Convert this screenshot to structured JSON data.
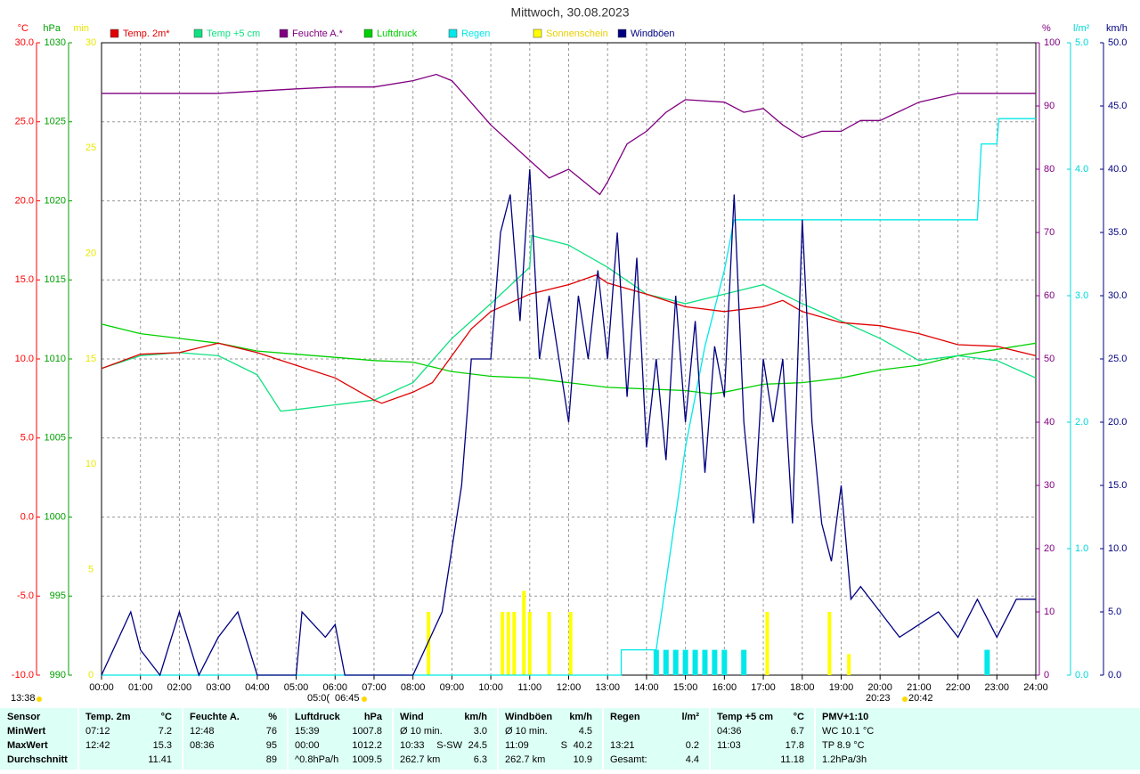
{
  "chart_data": {
    "type": "line",
    "title": "Mittwoch, 30.08.2023",
    "xlim": [
      0,
      24
    ],
    "xticks": [
      {
        "value": 0,
        "label": "00:00"
      },
      {
        "value": 1,
        "label": "01:00"
      },
      {
        "value": 2,
        "label": "02:00"
      },
      {
        "value": 3,
        "label": "03:00"
      },
      {
        "value": 4,
        "label": "04:00"
      },
      {
        "value": 5,
        "label": "05:00"
      },
      {
        "value": 6,
        "label": "06:00"
      },
      {
        "value": 7,
        "label": "07:00"
      },
      {
        "value": 8,
        "label": "08:00"
      },
      {
        "value": 9,
        "label": "09:00"
      },
      {
        "value": 10,
        "label": "10:00"
      },
      {
        "value": 11,
        "label": "11:00"
      },
      {
        "value": 12,
        "label": "12:00"
      },
      {
        "value": 13,
        "label": "13:00"
      },
      {
        "value": 14,
        "label": "14:00"
      },
      {
        "value": 15,
        "label": "15:00"
      },
      {
        "value": 16,
        "label": "16:00"
      },
      {
        "value": 17,
        "label": "17:00"
      },
      {
        "value": 18,
        "label": "18:00"
      },
      {
        "value": 19,
        "label": "19:00"
      },
      {
        "value": 20,
        "label": "20:00"
      },
      {
        "value": 21,
        "label": "21:00"
      },
      {
        "value": 22,
        "label": "22:00"
      },
      {
        "value": 23,
        "label": "23:00"
      },
      {
        "value": 24,
        "label": "24:00"
      }
    ],
    "grid": true,
    "y_axes": [
      {
        "label": "°C",
        "color": "#ff0000",
        "side": "left",
        "lim": [
          -10,
          30
        ],
        "ticks": [
          {
            "value": -10,
            "label": "-10.0"
          },
          {
            "value": -5,
            "label": "-5.0"
          },
          {
            "value": 0,
            "label": "0.0"
          },
          {
            "value": 5,
            "label": "5.0"
          },
          {
            "value": 10,
            "label": "10.0"
          },
          {
            "value": 15,
            "label": "15.0"
          },
          {
            "value": 20,
            "label": "20.0"
          },
          {
            "value": 25,
            "label": "25.0"
          },
          {
            "value": 30,
            "label": "30.0"
          }
        ]
      },
      {
        "label": "hPa",
        "color": "#00a000",
        "side": "left",
        "lim": [
          990,
          1030
        ],
        "ticks": [
          990,
          995,
          1000,
          1005,
          1010,
          1015,
          1020,
          1025,
          1030
        ]
      },
      {
        "label": "min",
        "color": "#e8e800",
        "side": "left",
        "lim": [
          0,
          30
        ],
        "ticks": [
          0,
          5,
          10,
          15,
          20,
          25,
          30
        ]
      },
      {
        "label": "%",
        "color": "#800080",
        "side": "right",
        "lim": [
          0,
          100
        ],
        "ticks": [
          0,
          10,
          20,
          30,
          40,
          50,
          60,
          70,
          80,
          90,
          100
        ]
      },
      {
        "label": "l/m²",
        "color": "#00d8d8",
        "side": "right",
        "lim": [
          0,
          5
        ],
        "ticks": [
          {
            "value": 0,
            "label": "0.0"
          },
          {
            "value": 1,
            "label": "1.0"
          },
          {
            "value": 2,
            "label": "2.0"
          },
          {
            "value": 3,
            "label": "3.0"
          },
          {
            "value": 4,
            "label": "4.0"
          },
          {
            "value": 5,
            "label": "5.0"
          }
        ]
      },
      {
        "label": "km/h",
        "color": "#000080",
        "side": "right",
        "lim": [
          0,
          50
        ],
        "ticks": [
          {
            "value": 0,
            "label": "0.0"
          },
          {
            "value": 5,
            "label": "5.0"
          },
          {
            "value": 10,
            "label": "10.0"
          },
          {
            "value": 15,
            "label": "15.0"
          },
          {
            "value": 20,
            "label": "20.0"
          },
          {
            "value": 25,
            "label": "25.0"
          },
          {
            "value": 30,
            "label": "30.0"
          },
          {
            "value": 35,
            "label": "35.0"
          },
          {
            "value": 40,
            "label": "40.0"
          },
          {
            "value": 45,
            "label": "45.0"
          },
          {
            "value": 50,
            "label": "50.0"
          }
        ]
      }
    ],
    "series": [
      {
        "name": "Temp. 2m*",
        "color": "#e00000",
        "axis": 0,
        "kind": "line",
        "x": [
          0,
          1,
          2,
          3,
          4,
          5,
          6,
          7,
          7.2,
          8,
          8.5,
          9,
          9.5,
          10,
          11,
          12,
          12.7,
          13,
          14,
          15,
          16,
          17,
          17.5,
          18,
          19,
          20,
          21,
          22,
          23,
          24
        ],
        "values": [
          9.4,
          10.3,
          10.4,
          11.0,
          10.4,
          9.6,
          8.8,
          7.4,
          7.2,
          7.9,
          8.5,
          10.2,
          11.9,
          13.0,
          14.1,
          14.7,
          15.3,
          14.8,
          14.1,
          13.3,
          13.0,
          13.3,
          13.7,
          13.0,
          12.3,
          12.1,
          11.6,
          10.9,
          10.8,
          10.2
        ]
      },
      {
        "name": "Temp +5 cm",
        "color": "#10e080",
        "axis": 0,
        "kind": "line",
        "x": [
          0,
          1,
          2,
          3,
          4,
          4.6,
          5,
          6,
          7,
          8,
          9,
          10,
          11,
          11.05,
          12,
          13,
          14,
          15,
          16,
          17,
          18,
          19,
          20,
          21,
          22,
          23,
          24
        ],
        "values": [
          9.4,
          10.2,
          10.4,
          10.2,
          9.0,
          6.7,
          6.8,
          7.1,
          7.4,
          8.5,
          11.3,
          13.5,
          15.8,
          17.8,
          17.2,
          15.8,
          14.1,
          13.5,
          14.1,
          14.7,
          13.5,
          12.4,
          11.3,
          9.9,
          10.2,
          9.9,
          8.8
        ]
      },
      {
        "name": "Feuchte A.*",
        "color": "#800080",
        "axis": 3,
        "kind": "line",
        "x": [
          0,
          3,
          5,
          6,
          7,
          8,
          8.6,
          9,
          10,
          11,
          11.5,
          12,
          12.8,
          13,
          13.5,
          14,
          14.5,
          15,
          16,
          16.5,
          17,
          17.5,
          18,
          18.5,
          19,
          19.5,
          20,
          21,
          22,
          24
        ],
        "values": [
          92,
          92,
          92.7,
          93,
          93,
          94,
          95,
          94,
          87,
          81.4,
          78.6,
          80,
          76,
          78,
          84,
          86,
          89,
          91,
          90.6,
          89,
          89.6,
          87,
          85,
          86,
          86,
          87.7,
          87.7,
          90.6,
          92,
          92
        ]
      },
      {
        "name": "Luftdruck",
        "color": "#00d000",
        "axis": 1,
        "kind": "line",
        "x": [
          0,
          1,
          2,
          3,
          4,
          5,
          6,
          7,
          8,
          9,
          10,
          11,
          12,
          13,
          14,
          15,
          15.65,
          16,
          17,
          18,
          19,
          20,
          21,
          22,
          23,
          24
        ],
        "values": [
          1012.2,
          1011.6,
          1011.3,
          1011.0,
          1010.5,
          1010.3,
          1010.1,
          1009.9,
          1009.8,
          1009.2,
          1008.9,
          1008.8,
          1008.5,
          1008.2,
          1008.1,
          1008.0,
          1007.8,
          1007.9,
          1008.4,
          1008.5,
          1008.8,
          1009.3,
          1009.6,
          1010.2,
          1010.6,
          1011.0
        ]
      },
      {
        "name": "Regen",
        "color": "#00e8e8",
        "axis": 4,
        "kind": "line",
        "x": [
          0,
          13.35,
          13.35,
          14.25,
          15,
          15.5,
          16,
          16.25,
          22.5,
          22.6,
          23,
          23.05,
          24
        ],
        "values": [
          0,
          0,
          0.2,
          0.2,
          1.8,
          2.6,
          3.2,
          3.6,
          3.6,
          4.2,
          4.2,
          4.4,
          4.4
        ],
        "bar_x": [
          14.25,
          14.5,
          14.75,
          15,
          15.25,
          15.5,
          15.75,
          16,
          16.5,
          22.75
        ],
        "bar_values": [
          0.2,
          0.2,
          0.2,
          0.2,
          0.2,
          0.2,
          0.2,
          0.2,
          0.2,
          0.2
        ]
      },
      {
        "name": "Sonnenschein",
        "color": "#ffff00",
        "axis": 2,
        "kind": "bar",
        "x": [
          8.4,
          10.3,
          10.45,
          10.6,
          10.85,
          11.0,
          11.5,
          12.05,
          17.1,
          18.7,
          19.2
        ],
        "values": [
          3,
          3,
          3,
          3,
          4,
          3,
          3,
          3,
          3,
          3,
          1
        ]
      },
      {
        "name": "Windböen",
        "color": "#000080",
        "axis": 5,
        "kind": "line",
        "x": [
          0,
          0.75,
          1,
          1.5,
          2,
          2.5,
          3,
          3.5,
          4,
          5,
          5.15,
          5.75,
          6,
          6.25,
          8,
          8.75,
          9,
          9.25,
          9.5,
          10,
          10.25,
          10.5,
          10.75,
          11,
          11.25,
          11.5,
          12,
          12.25,
          12.5,
          12.75,
          13,
          13.25,
          13.5,
          13.75,
          14,
          14.25,
          14.5,
          14.75,
          15,
          15.25,
          15.5,
          15.75,
          16,
          16.25,
          16.5,
          16.75,
          17,
          17.25,
          17.5,
          17.75,
          18,
          18.25,
          18.5,
          18.75,
          19,
          19.25,
          19.5,
          20,
          20.5,
          21,
          21.5,
          22,
          22.5,
          23,
          23.5,
          24
        ],
        "values": [
          0,
          5,
          2,
          0,
          5,
          0,
          3,
          5,
          0,
          0,
          5,
          3,
          4,
          0,
          0,
          5,
          10,
          15,
          25,
          25,
          35,
          38,
          28,
          40,
          25,
          30,
          20,
          30,
          25,
          32,
          25,
          35,
          22,
          33,
          18,
          25,
          17,
          30,
          20,
          28,
          16,
          26,
          22,
          38,
          20,
          12,
          25,
          20,
          25,
          12,
          36,
          20,
          12,
          9,
          15,
          6,
          7,
          5,
          3,
          4,
          5,
          3,
          6,
          3,
          6,
          6
        ]
      }
    ],
    "annotations": [
      "13:38",
      "05:0(",
      "06:45",
      "20:23",
      "20:42"
    ]
  },
  "stats": {
    "columns": [
      {
        "head": "Sensor",
        "rows": [
          {
            "l": "MinWert"
          },
          {
            "l": "MaxWert"
          },
          {
            "l": "Durchschnitt"
          }
        ]
      },
      {
        "head": "Temp. 2m",
        "unit": "°C",
        "rows": [
          {
            "l": "07:12",
            "r": "7.2"
          },
          {
            "l": "12:42",
            "r": "15.3"
          },
          {
            "r": "11.41"
          }
        ]
      },
      {
        "head": "Feuchte A.",
        "unit": "%",
        "rows": [
          {
            "l": "12:48",
            "r": "76"
          },
          {
            "l": "08:36",
            "r": "95"
          },
          {
            "r": "89"
          }
        ]
      },
      {
        "head": "Luftdruck",
        "unit": "hPa",
        "rows": [
          {
            "l": "15:39",
            "r": "1007.8"
          },
          {
            "l": "00:00",
            "r": "1012.2"
          },
          {
            "l": "^0.8hPa/h",
            "r": "1009.5"
          }
        ]
      },
      {
        "head": "Wind",
        "unit": "km/h",
        "rows": [
          {
            "l": "Ø 10 min.",
            "r": "3.0"
          },
          {
            "l": "10:33",
            "m": "S-SW",
            "r": "24.5"
          },
          {
            "l": "262.7 km",
            "r": "6.3"
          }
        ]
      },
      {
        "head": "Windböen",
        "unit": "km/h",
        "rows": [
          {
            "l": "Ø 10 min.",
            "r": "4.5"
          },
          {
            "l": "11:09",
            "m": "S",
            "r": "40.2"
          },
          {
            "l": "262.7 km",
            "r": "10.9"
          }
        ]
      },
      {
        "head": "Regen",
        "unit": "l/m²",
        "rows": [
          {},
          {
            "l": "13:21",
            "r": "0.2"
          },
          {
            "l": "Gesamt:",
            "r": "4.4"
          }
        ]
      },
      {
        "head": "Temp +5 cm",
        "unit": "°C",
        "rows": [
          {
            "l": "04:36",
            "r": "6.7"
          },
          {
            "l": "11:03",
            "r": "17.8"
          },
          {
            "r": "11.18"
          }
        ]
      },
      {
        "head": "PMV+1:10",
        "rows": [
          {
            "l": "WC 10.1 °C"
          },
          {
            "l": "TP 8.9 °C"
          },
          {
            "l": "1.2hPa/3h"
          }
        ]
      }
    ]
  }
}
